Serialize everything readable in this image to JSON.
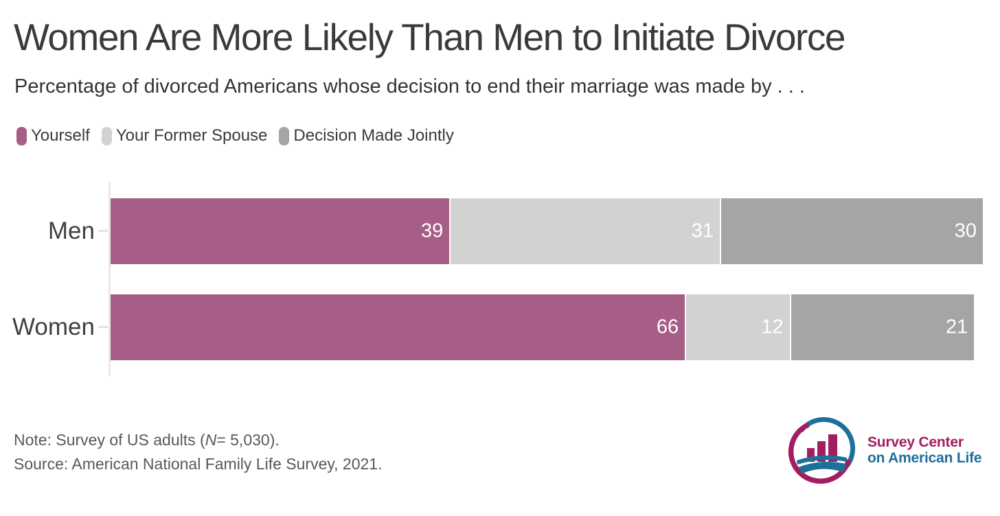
{
  "chart_data": {
    "type": "bar",
    "orientation": "horizontal",
    "stacked": true,
    "title": "Women Are More Likely Than Men to Initiate Divorce",
    "subtitle": "Percentage of divorced Americans whose decision to end their marriage was made by . . .",
    "categories": [
      "Men",
      "Women"
    ],
    "series": [
      {
        "name": "Yourself",
        "color": "#a65d86",
        "values": [
          39,
          66
        ]
      },
      {
        "name": "Your Former Spouse",
        "color": "#d2d2d2",
        "values": [
          31,
          12
        ]
      },
      {
        "name": "Decision Made Jointly",
        "color": "#a5a5a5",
        "values": [
          30,
          21
        ]
      }
    ],
    "xlim": [
      0,
      100
    ],
    "grid": false,
    "legend_position": "top-left",
    "value_labels": "inside-end",
    "value_label_color": "#ffffff",
    "axis_color": "#e8e8e8"
  },
  "note": {
    "prefix": "Note: Survey of US adults (",
    "n": "N",
    "suffix": "= 5,030)."
  },
  "source": "Source: American National Family Life Survey, 2021.",
  "logo": {
    "line1": "Survey Center",
    "line2": "on American Life",
    "maroon": "#a21d61",
    "blue": "#1e6f99"
  }
}
